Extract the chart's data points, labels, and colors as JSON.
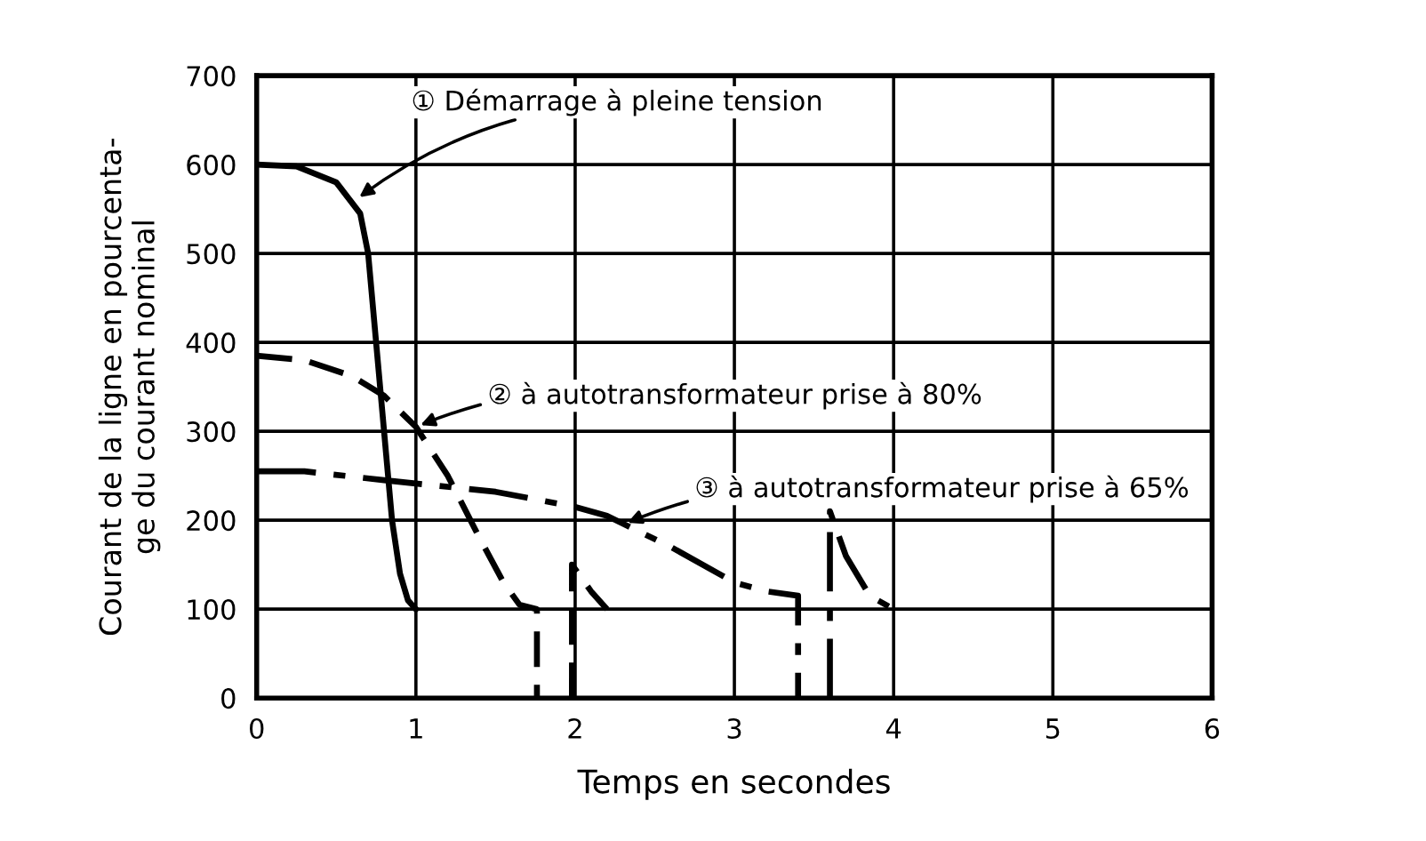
{
  "chart_data": {
    "type": "line",
    "xlabel": "Temps en secondes",
    "ylabel": "Courant de la ligne en pourcenta-\nge du courant nominal",
    "xlim": [
      0,
      6
    ],
    "ylim": [
      0,
      700
    ],
    "xticks": [
      0,
      1,
      2,
      3,
      4,
      5,
      6
    ],
    "yticks": [
      0,
      100,
      200,
      300,
      400,
      500,
      600,
      700
    ],
    "grid": true,
    "series": [
      {
        "color": "#000000",
        "line_style": "solid",
        "x": [
          0,
          0.25,
          0.5,
          0.65,
          0.7,
          0.75,
          0.8,
          0.85,
          0.9,
          0.95,
          1.0
        ],
        "values": [
          600,
          598,
          580,
          545,
          500,
          400,
          300,
          200,
          140,
          110,
          100
        ]
      },
      {
        "color": "#000000",
        "line_style": "dashed",
        "x": [
          0,
          0.3,
          0.6,
          0.8,
          1.0,
          1.2,
          1.4,
          1.55,
          1.65,
          1.76,
          1.76
        ],
        "values": [
          385,
          380,
          362,
          340,
          305,
          250,
          180,
          130,
          105,
          100,
          0
        ]
      },
      {
        "color": "#000000",
        "line_style": "dashed",
        "x": [
          1.98,
          1.98,
          2.1,
          2.2
        ],
        "values": [
          0,
          150,
          120,
          100
        ]
      },
      {
        "color": "#000000",
        "line_style": "dashdot",
        "x": [
          0,
          0.3,
          0.8,
          1.5,
          2.0,
          2.2,
          2.6,
          3.0,
          3.2,
          3.4,
          3.4
        ],
        "values": [
          255,
          255,
          245,
          232,
          215,
          205,
          170,
          130,
          120,
          115,
          0
        ]
      },
      {
        "color": "#000000",
        "line_style": "dashdot",
        "x": [
          3.6,
          3.6,
          3.7,
          3.85,
          4.0
        ],
        "values": [
          0,
          210,
          160,
          115,
          100
        ]
      }
    ],
    "annotations": [
      {
        "text": "① Démarrage à pleine tension",
        "x": 0.62,
        "y": 560
      },
      {
        "text": "② à autotransformateur prise à 80%",
        "x": 1.0,
        "y": 305
      },
      {
        "text": "③ à autotransformateur prise à 65%",
        "x": 2.3,
        "y": 195
      }
    ]
  }
}
